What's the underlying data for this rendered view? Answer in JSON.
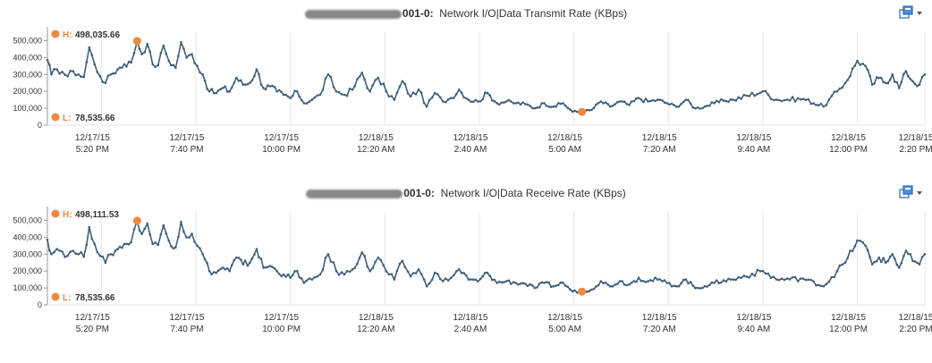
{
  "colors": {
    "series_line": "#3f5f7a",
    "marker": "#f0883e",
    "gridline": "#e6e6e6",
    "axis": "#999999"
  },
  "icons": {
    "panel_menu": "chart-menu-icon"
  },
  "chart_data": [
    {
      "type": "line",
      "title": "001-0:  Network I/O|Data Transmit Rate (KBps)",
      "title_host_suffix": "001-0:",
      "title_metric": "Network I/O|Data Transmit Rate (KBps)",
      "ylim": [
        0,
        550000
      ],
      "yticks": [
        0,
        100000,
        200000,
        300000,
        400000,
        500000
      ],
      "ytick_labels": [
        "0",
        "100,000",
        "200,000",
        "300,000",
        "400,000",
        "500,000"
      ],
      "xlim": [
        0,
        1300
      ],
      "xticks": [
        80,
        220,
        360,
        500,
        640,
        780,
        920,
        1060,
        1200,
        1300
      ],
      "xtick_labels": [
        [
          "12/17/15",
          "5:20 PM"
        ],
        [
          "12/17/15",
          "7:40 PM"
        ],
        [
          "12/17/15",
          "10:00 PM"
        ],
        [
          "12/18/15",
          "12:20 AM"
        ],
        [
          "12/18/15",
          "2:40 AM"
        ],
        [
          "12/18/15",
          "5:00 AM"
        ],
        [
          "12/18/15",
          "7:20 AM"
        ],
        [
          "12/18/15",
          "9:40 AM"
        ],
        [
          "12/18/15",
          "12:00 PM"
        ],
        [
          "12/18/15",
          "2:20 PM"
        ]
      ],
      "high": {
        "key": "H:",
        "label": "498,035.66",
        "x": 133,
        "y": 498035.66
      },
      "low": {
        "key": "L:",
        "label": "78,535.66",
        "x": 792,
        "y": 78535.66
      },
      "grid": true,
      "series": [
        {
          "x": [],
          "y": []
        }
      ]
    },
    {
      "type": "line",
      "title": "001-0:  Network I/O|Data Receive Rate (KBps)",
      "title_host_suffix": "001-0:",
      "title_metric": "Network I/O|Data Receive Rate (KBps)",
      "ylim": [
        0,
        550000
      ],
      "yticks": [
        0,
        100000,
        200000,
        300000,
        400000,
        500000
      ],
      "ytick_labels": [
        "0",
        "100,000",
        "200,000",
        "300,000",
        "400,000",
        "500,000"
      ],
      "xlim": [
        0,
        1300
      ],
      "xticks": [
        80,
        220,
        360,
        500,
        640,
        780,
        920,
        1060,
        1200,
        1300
      ],
      "xtick_labels": [
        [
          "12/17/15",
          "5:20 PM"
        ],
        [
          "12/17/15",
          "7:40 PM"
        ],
        [
          "12/17/15",
          "10:00 PM"
        ],
        [
          "12/18/15",
          "12:20 AM"
        ],
        [
          "12/18/15",
          "2:40 AM"
        ],
        [
          "12/18/15",
          "5:00 AM"
        ],
        [
          "12/18/15",
          "7:20 AM"
        ],
        [
          "12/18/15",
          "9:40 AM"
        ],
        [
          "12/18/15",
          "12:00 PM"
        ],
        [
          "12/18/15",
          "2:20 PM"
        ]
      ],
      "high": {
        "key": "H:",
        "label": "498,111.53",
        "x": 133,
        "y": 498111.53
      },
      "low": {
        "key": "L:",
        "label": "78,535.66",
        "x": 792,
        "y": 78535.66
      },
      "grid": true,
      "series": [
        {
          "x": [],
          "y": []
        }
      ]
    }
  ]
}
